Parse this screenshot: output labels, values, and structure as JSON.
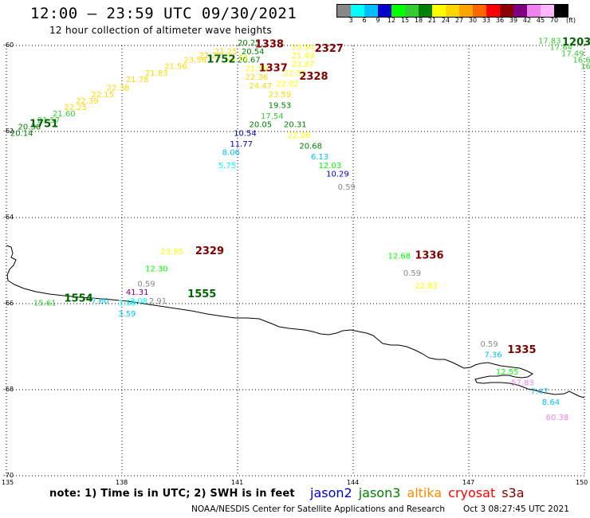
{
  "header": {
    "title": "12:00 – 23:59 UTC 09/30/2021",
    "subtitle": "12 hour collection of altimeter wave heights"
  },
  "scale": {
    "labels": [
      "3",
      "6",
      "9",
      "12",
      "15",
      "18",
      "21",
      "24",
      "27",
      "30",
      "33",
      "36",
      "39",
      "42",
      "45",
      "70"
    ],
    "unit": "(ft)",
    "colors": [
      "#888888",
      "#00ffff",
      "#00bfff",
      "#0000cc",
      "#00ff00",
      "#33cc33",
      "#008000",
      "#ffff00",
      "#ffd700",
      "#ffa500",
      "#ff6600",
      "#ff0000",
      "#8b0000",
      "#800080",
      "#ee82ee",
      "#ffb6ff",
      "#000000"
    ]
  },
  "axes": {
    "lat_labels": [
      "-60",
      "-62",
      "-64",
      "-66",
      "-68",
      "-70"
    ],
    "lon_labels": [
      "135",
      "138",
      "141",
      "144",
      "147",
      "150"
    ]
  },
  "footer": {
    "note": "note: 1) Time is in UTC; 2) SWH is in feet",
    "satellites": [
      {
        "name": "jason2",
        "color": "#0000cc"
      },
      {
        "name": "jason3",
        "color": "#008000"
      },
      {
        "name": "altika",
        "color": "#ff8c00"
      },
      {
        "name": "cryosat",
        "color": "#ff0000"
      },
      {
        "name": "s3a",
        "color": "#800000"
      }
    ],
    "credit": "NOAA/NESDIS Center for Satellite Applications and Research",
    "date": "Oct  3 08:27:45 UTC 2021"
  },
  "map": {
    "times": [
      {
        "text": "1338",
        "lon": 141.45,
        "lat": -60.05,
        "color": "#800000"
      },
      {
        "text": "1337",
        "lon": 141.55,
        "lat": -60.6,
        "color": "#800000"
      },
      {
        "text": "2327",
        "lon": 143.0,
        "lat": -60.15,
        "color": "#800000"
      },
      {
        "text": "2328",
        "lon": 142.6,
        "lat": -60.8,
        "color": "#800000"
      },
      {
        "text": "1752",
        "lon": 140.2,
        "lat": -60.4,
        "color": "#006400"
      },
      {
        "text": "1751",
        "lon": 135.6,
        "lat": -61.9,
        "color": "#006400"
      },
      {
        "text": "1203",
        "lon": 149.6,
        "lat": -60.0,
        "color": "#006400"
      },
      {
        "text": "2329",
        "lon": 139.9,
        "lat": -64.85,
        "color": "#800000"
      },
      {
        "text": "1336",
        "lon": 145.6,
        "lat": -64.95,
        "color": "#800000"
      },
      {
        "text": "1555",
        "lon": 139.7,
        "lat": -65.85,
        "color": "#006400"
      },
      {
        "text": "1554",
        "lon": 136.5,
        "lat": -65.95,
        "color": "#006400"
      },
      {
        "text": "1335",
        "lon": 148.0,
        "lat": -67.15,
        "color": "#800000"
      }
    ],
    "values": [
      {
        "text": "20.25",
        "lon": 141.0,
        "lat": -60.0,
        "color": "#008000"
      },
      {
        "text": "20.54",
        "lon": 141.1,
        "lat": -60.2,
        "color": "#008000"
      },
      {
        "text": "20.67",
        "lon": 141.0,
        "lat": -60.4,
        "color": "#008000"
      },
      {
        "text": "21.51",
        "lon": 140.7,
        "lat": -60.35,
        "color": "#ffff00"
      },
      {
        "text": "21.25",
        "lon": 140.4,
        "lat": -60.2,
        "color": "#ffd700"
      },
      {
        "text": "22.22",
        "lon": 140.0,
        "lat": -60.3,
        "color": "#ffd700"
      },
      {
        "text": "23.56",
        "lon": 139.6,
        "lat": -60.4,
        "color": "#ffd700"
      },
      {
        "text": "21.56",
        "lon": 139.1,
        "lat": -60.55,
        "color": "#ffd700"
      },
      {
        "text": "21.83",
        "lon": 138.6,
        "lat": -60.7,
        "color": "#ffd700"
      },
      {
        "text": "21.78",
        "lon": 138.1,
        "lat": -60.85,
        "color": "#ffd700"
      },
      {
        "text": "22.38",
        "lon": 137.6,
        "lat": -61.05,
        "color": "#ffd700"
      },
      {
        "text": "22.15",
        "lon": 137.2,
        "lat": -61.2,
        "color": "#ffd700"
      },
      {
        "text": "22.39",
        "lon": 136.8,
        "lat": -61.35,
        "color": "#ffd700"
      },
      {
        "text": "22.25",
        "lon": 136.5,
        "lat": -61.5,
        "color": "#ffd700"
      },
      {
        "text": "21.60",
        "lon": 136.2,
        "lat": -61.65,
        "color": "#33cc33"
      },
      {
        "text": "21.57",
        "lon": 135.8,
        "lat": -61.8,
        "color": "#33cc33"
      },
      {
        "text": "20.36",
        "lon": 135.3,
        "lat": -61.95,
        "color": "#008000"
      },
      {
        "text": "20.14",
        "lon": 135.1,
        "lat": -62.1,
        "color": "#008000"
      },
      {
        "text": "21.59",
        "lon": 141.2,
        "lat": -60.6,
        "color": "#ffff00"
      },
      {
        "text": "22.36",
        "lon": 141.2,
        "lat": -60.8,
        "color": "#ffd700"
      },
      {
        "text": "24.47",
        "lon": 141.3,
        "lat": -61.0,
        "color": "#ffd700"
      },
      {
        "text": "23.59",
        "lon": 141.8,
        "lat": -61.2,
        "color": "#ffd700"
      },
      {
        "text": "19.53",
        "lon": 141.8,
        "lat": -61.45,
        "color": "#008000"
      },
      {
        "text": "17.54",
        "lon": 141.6,
        "lat": -61.7,
        "color": "#33cc33"
      },
      {
        "text": "20.05",
        "lon": 141.3,
        "lat": -61.9,
        "color": "#008000"
      },
      {
        "text": "10.54",
        "lon": 140.9,
        "lat": -62.1,
        "color": "#0000cc"
      },
      {
        "text": "11.77",
        "lon": 140.8,
        "lat": -62.35,
        "color": "#0000cc"
      },
      {
        "text": "8.06",
        "lon": 140.6,
        "lat": -62.55,
        "color": "#00bfff"
      },
      {
        "text": "5.75",
        "lon": 140.5,
        "lat": -62.85,
        "color": "#00ffff"
      },
      {
        "text": "23.54",
        "lon": 142.4,
        "lat": -60.1,
        "color": "#ffff00"
      },
      {
        "text": "21.49",
        "lon": 142.4,
        "lat": -60.3,
        "color": "#ffff00"
      },
      {
        "text": "23.87",
        "lon": 142.4,
        "lat": -60.5,
        "color": "#ffff00"
      },
      {
        "text": "21.51",
        "lon": 142.2,
        "lat": -60.7,
        "color": "#ffff00"
      },
      {
        "text": "22.02",
        "lon": 142.0,
        "lat": -60.95,
        "color": "#ffff00"
      },
      {
        "text": "20.31",
        "lon": 142.2,
        "lat": -61.9,
        "color": "#008000"
      },
      {
        "text": "22.06",
        "lon": 142.3,
        "lat": -62.15,
        "color": "#ffff00"
      },
      {
        "text": "20.68",
        "lon": 142.6,
        "lat": -62.4,
        "color": "#008000"
      },
      {
        "text": "6.13",
        "lon": 142.9,
        "lat": -62.65,
        "color": "#00bfff"
      },
      {
        "text": "12.03",
        "lon": 143.1,
        "lat": -62.85,
        "color": "#00ff00"
      },
      {
        "text": "10.29",
        "lon": 143.3,
        "lat": -63.05,
        "color": "#0000cc"
      },
      {
        "text": "0.59",
        "lon": 143.6,
        "lat": -63.35,
        "color": "#888888"
      },
      {
        "text": "17.83",
        "lon": 148.8,
        "lat": -59.95,
        "color": "#33cc33"
      },
      {
        "text": "17.64",
        "lon": 149.1,
        "lat": -60.1,
        "color": "#33cc33"
      },
      {
        "text": "17.49",
        "lon": 149.4,
        "lat": -60.25,
        "color": "#33cc33"
      },
      {
        "text": "16.62",
        "lon": 149.7,
        "lat": -60.4,
        "color": "#33cc33"
      },
      {
        "text": "16",
        "lon": 149.9,
        "lat": -60.55,
        "color": "#33cc33"
      },
      {
        "text": "23.95",
        "lon": 139.0,
        "lat": -64.85,
        "color": "#ffff00"
      },
      {
        "text": "12.30",
        "lon": 138.6,
        "lat": -65.25,
        "color": "#00ff00"
      },
      {
        "text": "0.59",
        "lon": 138.4,
        "lat": -65.6,
        "color": "#888888"
      },
      {
        "text": "41.31",
        "lon": 138.1,
        "lat": -65.8,
        "color": "#800080"
      },
      {
        "text": "2.91",
        "lon": 138.7,
        "lat": -66.0,
        "color": "#888888"
      },
      {
        "text": "3.59",
        "lon": 137.9,
        "lat": -66.05,
        "color": "#00ffff"
      },
      {
        "text": "3.08",
        "lon": 138.2,
        "lat": -66.0,
        "color": "#00ffff"
      },
      {
        "text": "7.60",
        "lon": 137.2,
        "lat": -66.0,
        "color": "#00bfff"
      },
      {
        "text": "3.59",
        "lon": 137.9,
        "lat": -66.3,
        "color": "#00bfff"
      },
      {
        "text": "15.61",
        "lon": 135.7,
        "lat": -66.05,
        "color": "#33cc33"
      },
      {
        "text": "12.68",
        "lon": 144.9,
        "lat": -64.95,
        "color": "#00ff00"
      },
      {
        "text": "0.59",
        "lon": 145.3,
        "lat": -65.35,
        "color": "#888888"
      },
      {
        "text": "22.83",
        "lon": 145.6,
        "lat": -65.65,
        "color": "#ffff00"
      },
      {
        "text": "0.59",
        "lon": 147.3,
        "lat": -67.0,
        "color": "#888888"
      },
      {
        "text": "7.36",
        "lon": 147.4,
        "lat": -67.25,
        "color": "#00bfff"
      },
      {
        "text": "12.55",
        "lon": 147.7,
        "lat": -67.65,
        "color": "#00ff00"
      },
      {
        "text": "57.83",
        "lon": 148.1,
        "lat": -67.9,
        "color": "#ee82ee"
      },
      {
        "text": "7.47",
        "lon": 148.6,
        "lat": -68.1,
        "color": "#00bfff"
      },
      {
        "text": "8.64",
        "lon": 148.9,
        "lat": -68.35,
        "color": "#00bfff"
      },
      {
        "text": "60.38",
        "lon": 149.0,
        "lat": -68.7,
        "color": "#ee82ee"
      }
    ]
  }
}
